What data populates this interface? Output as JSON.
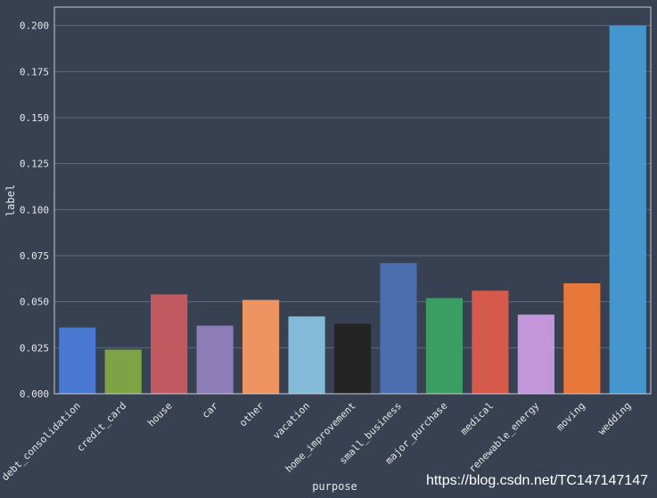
{
  "chart_data": {
    "type": "bar",
    "xlabel": "purpose",
    "ylabel": "label",
    "ylim": [
      0,
      0.21
    ],
    "yticks": [
      "0.000",
      "0.025",
      "0.050",
      "0.075",
      "0.100",
      "0.125",
      "0.150",
      "0.175",
      "0.200"
    ],
    "categories": [
      "debt_consolidation",
      "credit_card",
      "house",
      "car",
      "other",
      "vacation",
      "home_improvement",
      "small_business",
      "major_purchase",
      "medical",
      "renewable_energy",
      "moving",
      "wedding"
    ],
    "values": [
      0.036,
      0.024,
      0.054,
      0.037,
      0.051,
      0.042,
      0.038,
      0.071,
      0.052,
      0.056,
      0.043,
      0.06,
      0.2
    ],
    "colors": [
      "#4878cf",
      "#7ea346",
      "#c15a60",
      "#8c7db8",
      "#ee9460",
      "#82bad8",
      "#242424",
      "#4a6eae",
      "#3a9e63",
      "#d65a4b",
      "#c395d9",
      "#e8783a",
      "#4596cf"
    ]
  },
  "watermark": "https://blog.csdn.net/TC147147147"
}
